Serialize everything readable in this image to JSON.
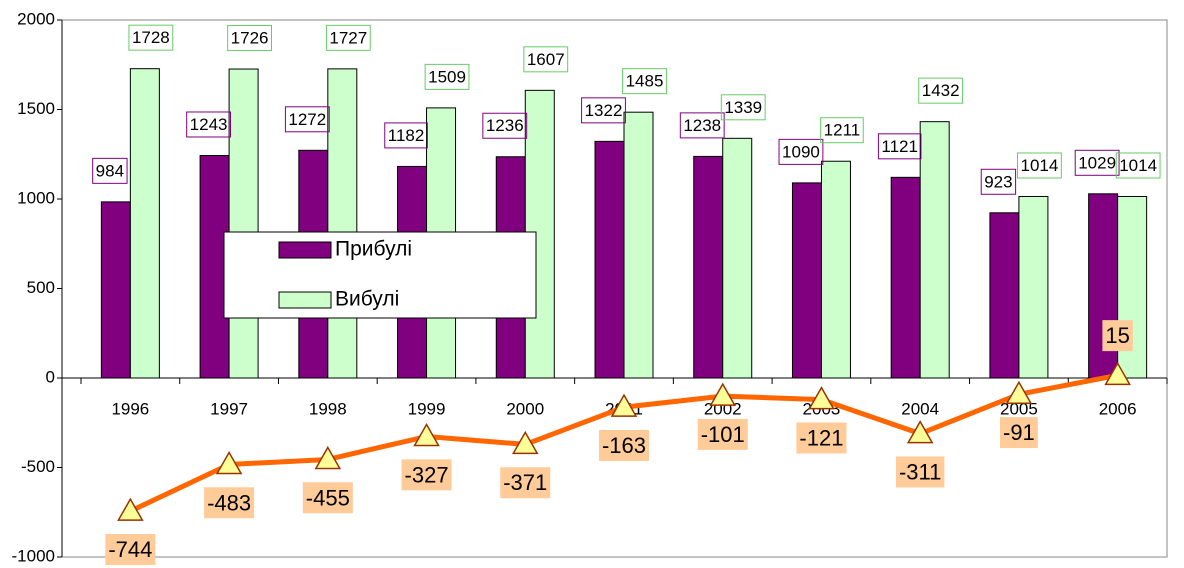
{
  "chart_data": {
    "type": "bar",
    "categories": [
      "1996",
      "1997",
      "1998",
      "1999",
      "2000",
      "2001",
      "2002",
      "2003",
      "2004",
      "2005",
      "2006"
    ],
    "series": [
      {
        "name": "Прибулі",
        "color": "#800080",
        "values": [
          984,
          1243,
          1272,
          1182,
          1236,
          1322,
          1238,
          1090,
          1121,
          923,
          1029
        ]
      },
      {
        "name": "Вибулі",
        "color": "#ccffcc",
        "values": [
          1728,
          1726,
          1727,
          1509,
          1607,
          1485,
          1339,
          1211,
          1432,
          1014,
          1014
        ]
      },
      {
        "type": "line",
        "color": "#ff6600",
        "values": [
          -744,
          -483,
          -455,
          -327,
          -371,
          -163,
          -101,
          -121,
          -311,
          -91,
          15
        ]
      }
    ],
    "ylim": [
      -1000,
      2000
    ],
    "yticks": [
      -1000,
      -500,
      0,
      500,
      1000,
      1500,
      2000
    ],
    "grid": false
  }
}
